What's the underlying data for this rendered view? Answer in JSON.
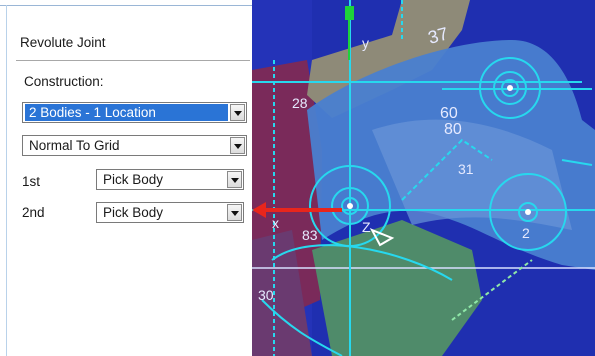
{
  "panel": {
    "title": "Revolute Joint",
    "construction_label": "Construction:",
    "construction_value": "2 Bodies - 1 Location",
    "orientation_value": "Normal To Grid",
    "first_label": "1st",
    "first_value": "Pick Body",
    "second_label": "2nd",
    "second_value": "Pick Body"
  },
  "viewport": {
    "labels": [
      "y",
      "x",
      "37",
      "28",
      "60",
      "80",
      "31",
      "83",
      "Z",
      "2",
      "30"
    ]
  },
  "colors": {
    "selection": "#2a74d6",
    "viewport_bg": "#1f2fb0",
    "cyan": "#27d8ee",
    "pointer": "#e8261c"
  }
}
